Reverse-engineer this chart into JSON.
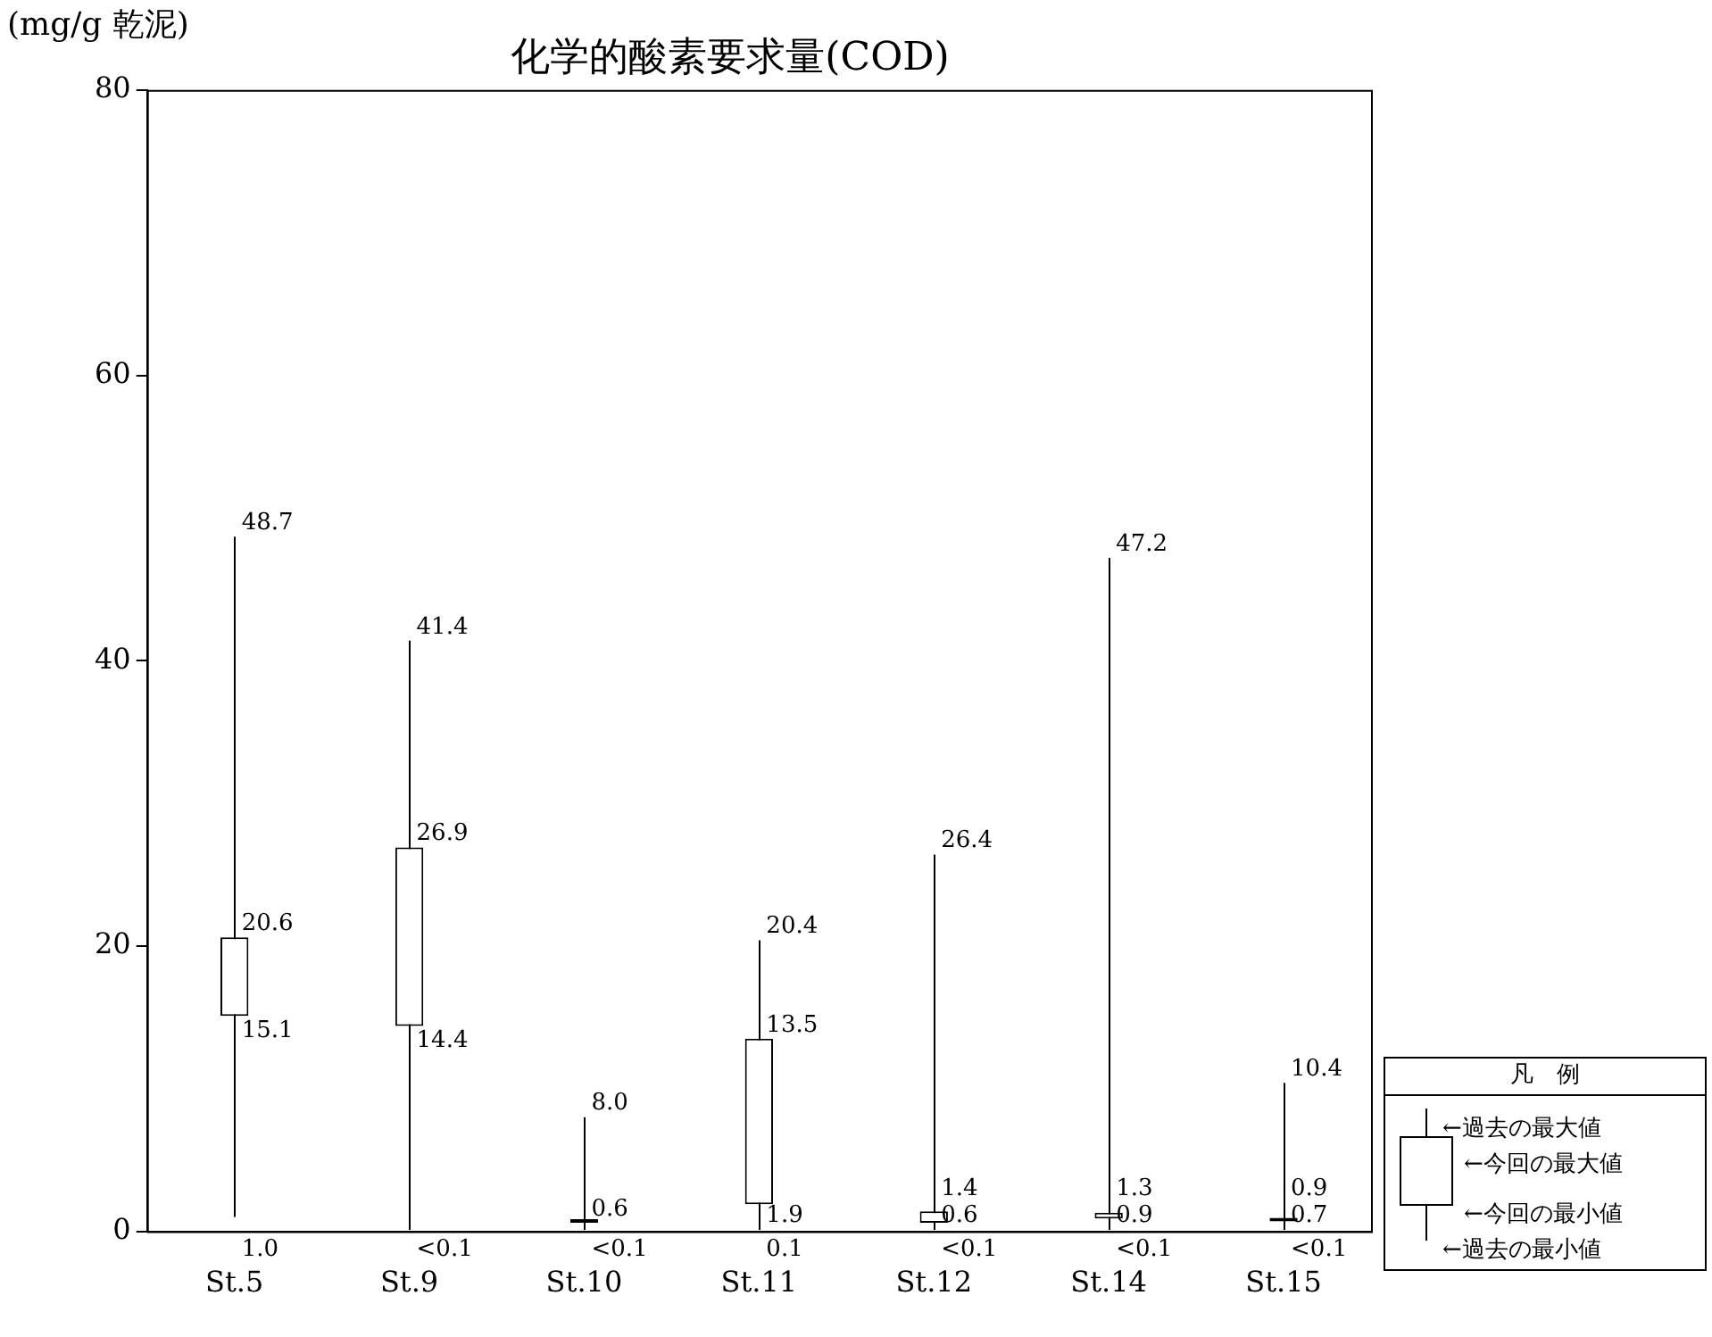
{
  "chart_data": {
    "type": "candlestick",
    "title": "化学的酸素要求量(COD)",
    "ylabel": "(mg/g 乾泥)",
    "categories": [
      "St.5",
      "St.9",
      "St.10",
      "St.11",
      "St.12",
      "St.14",
      "St.15"
    ],
    "ohlc": [
      [
        15.1,
        48.7,
        1.0,
        20.6
      ],
      [
        14.4,
        41.4,
        0.1,
        26.9
      ],
      [
        0.6,
        8.0,
        0.1,
        0.6
      ],
      [
        1.9,
        20.4,
        0.1,
        13.5
      ],
      [
        0.6,
        26.4,
        0.1,
        1.4
      ],
      [
        0.9,
        47.2,
        0.1,
        1.3
      ],
      [
        0.7,
        10.4,
        0.1,
        0.9
      ]
    ],
    "ylim": [
      0,
      80
    ],
    "yticks": [
      0,
      20,
      40,
      60,
      80
    ],
    "grid": false,
    "legend": false,
    "annotations": [
      {
        "text": "48.7",
        "x": "St.5",
        "y": 48.7
      },
      {
        "text": "20.6",
        "x": "St.5",
        "y": 20.6
      },
      {
        "text": "15.1",
        "x": "St.5",
        "y": 15.1
      },
      {
        "text": "1.0",
        "x": "St.5",
        "y": 1.0
      },
      {
        "text": "41.4",
        "x": "St.9",
        "y": 41.4
      },
      {
        "text": "26.9",
        "x": "St.9",
        "y": 26.9
      },
      {
        "text": "14.4",
        "x": "St.9",
        "y": 14.4
      },
      {
        "text": "<0.1",
        "x": "St.9",
        "y": 0.1
      },
      {
        "text": "8.0",
        "x": "St.10",
        "y": 8.0
      },
      {
        "text": "0.6",
        "x": "St.10",
        "y": 0.6
      },
      {
        "text": "<0.1",
        "x": "St.10",
        "y": 0.1
      },
      {
        "text": "20.4",
        "x": "St.11",
        "y": 20.4
      },
      {
        "text": "13.5",
        "x": "St.11",
        "y": 13.5
      },
      {
        "text": "1.9",
        "x": "St.11",
        "y": 1.9
      },
      {
        "text": "0.1",
        "x": "St.11",
        "y": 0.1
      },
      {
        "text": "26.4",
        "x": "St.12",
        "y": 26.4
      },
      {
        "text": "1.4",
        "x": "St.12",
        "y": 1.4
      },
      {
        "text": "0.6",
        "x": "St.12",
        "y": 0.6
      },
      {
        "text": "<0.1",
        "x": "St.12",
        "y": 0.1
      },
      {
        "text": "47.2",
        "x": "St.14",
        "y": 47.2
      },
      {
        "text": "1.3",
        "x": "St.14",
        "y": 1.3
      },
      {
        "text": "0.9",
        "x": "St.14",
        "y": 0.9
      },
      {
        "text": "<0.1",
        "x": "St.14",
        "y": 0.1
      },
      {
        "text": "10.4",
        "x": "St.15",
        "y": 10.4
      },
      {
        "text": "0.9",
        "x": "St.15",
        "y": 0.9
      },
      {
        "text": "0.7",
        "x": "St.15",
        "y": 0.7
      },
      {
        "text": "<0.1",
        "x": "St.15",
        "y": 0.1
      },
      "凡　例",
      "←過去の最大値",
      "←今回の最大値",
      "←今回の最小値",
      "←過去の最小値"
    ]
  }
}
